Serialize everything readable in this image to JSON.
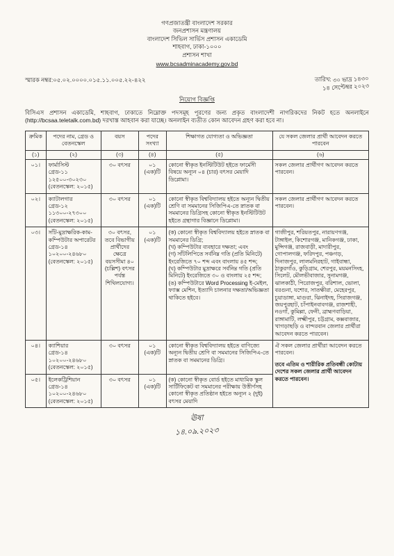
{
  "header": {
    "line1": "গণপ্রজাতন্ত্রী বাংলাদেশ সরকার",
    "line2": "জনপ্রশাসন মন্ত্রণালয়",
    "line3": "বাংলাদেশ সিভিল সার্ভিস প্রশাসন একাডেমি",
    "line4": "শাহবাগ, ঢাকা-১০০০",
    "line5": "প্রশাসন শাখা",
    "url": "www.bcsadminacademy.gov.bd"
  },
  "memo_label": "স্মারক নম্বর:০৫.০২.০০০০.০১৫.১১.০০৫.২২-",
  "memo_hand": "৪২২",
  "date_label": "তারিখ:",
  "date_line1": "৩০ ভাদ্র ১৪৩০",
  "date_line2": "১৪ সেপ্টেম্বর ২০২৩",
  "title": "নিয়োগ বিজ্ঞপ্তি",
  "intro": "বিসিএস প্রশাসন একাডেমি, শাহবাগ, ঢাকাতে নিম্নোক্ত পদসমূহ পূরণের জন্য প্রকৃত বাংলাদেশী নাগরিকদের নিকট হতে অনলাইনে (http://bcsaa.teletalk.com.bd) দরখাস্ত আহবান করা যাচ্ছে। অনলাইন ব্যতীত কোন আবেদন গ্রহণ করা হবে না।",
  "columns": {
    "h1": "ক্রমিক",
    "h2": "পদের নাম, গ্রেড ও বেতনস্কেল",
    "h3": "বয়স",
    "h4": "পদের সংখ্যা",
    "h5": "শিক্ষাগত যোগ্যতা ও অভিজ্ঞতা",
    "h6": "যে সকল জেলার প্রার্থী আবেদন করতে পারবেন",
    "s1": "(১)",
    "s2": "(২)",
    "s3": "(৩)",
    "s4": "(৪)",
    "s5": "(৫)",
    "s6": "(৬)"
  },
  "rows": [
    {
      "no": "০১।",
      "post": "ফার্মাসিস্ট\nগ্রেড-১১\n১২৫০০-৩০২৩০\n(বেতনস্কেল: ২০১৫)",
      "age": "৩০ বৎসর",
      "qty": "০১\n(এক)টি",
      "qual": "কোনো স্বীকৃত ইনস্টিটিউট হইতে ফার্মেসী বিষয়ে অন্যূন ০৪ (চার) বৎসর মেয়াদি ডিপ্লোমা।",
      "dist": "সকল জেলার প্রার্থীগণ আবেদন করতে পারবেন।"
    },
    {
      "no": "০২।",
      "post": "ক্যাটালগার\nগ্রেড-১২\n১১৩০০-২৭৩০০\n(বেতনস্কেল: ২০১৫)",
      "age": "৩০ বৎসর",
      "qty": "০১\n(এক)টি",
      "qual": "কোনো স্বীকৃত বিশ্ববিদ্যালয় হইতে অন্যূন দ্বিতীয় শ্রেণি বা সমমানের সিজিপিএ-তে স্নাতক বা সমমানের ডিগ্রিসহ কোনো স্বীকৃত ইনস্টিটিউট হইতে গ্রন্থাগার বিজ্ঞানে ডিপ্লোমা।",
      "dist": "সকল জেলার প্রার্থীগণ আবেদন করতে পারবেন।"
    },
    {
      "no": "০৩।",
      "post": "সাঁট-মুদ্রাক্ষরিক-কাম-কম্পিউটার অপারেটর\nগ্রেড-১৪\n১০২০০-২৪৬৮০\n(বেতনস্কেল: ২০১৫)",
      "age": "৩০ বৎসর, তবে বিভাগীয় প্রার্থীদের ক্ষেত্রে বয়সসীমা ৪০ (চল্লিশ) বৎসর পর্যন্ত শিথিলযোগ্য।",
      "qty": "০১\n(এক)টি",
      "qual": "(ক) কোনো স্বীকৃত বিশ্ববিদ্যালয় হইতে স্নাতক বা সমমানের ডিগ্রি;\n(খ) কম্পিউটার ব্যবহারে দক্ষতা; এবং\n(গ) সাঁটলিপিতে সর্বনিম্ন গতি (প্রতি মিনিটে) ইংরেজিতে ৭০ শব্দ এবং বাংলায় ৪৫ শব্দ;\n(ঘ) কম্পিউটার মুদ্রাক্ষরে সর্বনিম্ন গতি (প্রতি মিনিটে) ইংরেজিতে ৩০ ও বাংলায় ২৫ শব্দ;\n(ঙ) কম্পিউটারে Word Processing ই-মেইল, ফ্যাক্স মেশিন, ইত্যাদি চালনার দক্ষতা/অভিজ্ঞতা থাকিতে হইবে।",
      "dist": "গাজীপুর, শরিয়তপুর, নারায়ণগঞ্জ, টাঙ্গাইল, কিশোরগঞ্জ, মানিকগঞ্জ, ঢাকা, মুন্সিগঞ্জ, রাজবাড়ী, মাদারীপুর, গোপালগঞ্জ, ফরিদপুর, পঞ্চগড়, দিনাজপুর, লালমনিরহাট, গাইবান্ধা, ঠাকুরগাঁও, কুড়িগ্রাম, শেরপুর, ময়মনসিংহ, সিলেট, মৌলভীবাজার, সুনামগঞ্জ, ঝালকাঠী, পিরোজপুর, বরিশাল, ভোলা, বরগুনা, যশোর, সাতক্ষীরা, মেহেরপুর, চুয়াডাঙ্গা, মাগুরা, ঝিনাইদহ, সিরাজগঞ্জ, জয়পুরহাট, চাঁপাইনবাবগঞ্জ, রাজশাহী, নওগাঁ, কুমিল্লা, ফেনী, ব্রাহ্মণবাড়িয়া, রাঙ্গামাটি, লক্ষ্মীপুর, চট্টগ্রাম, কক্সবাজার, খাগড়াছড়ি ও বান্দরবান জেলার প্রার্থীরা আবেদন করতে পারবেন।"
    },
    {
      "no": "০৪।",
      "post": "ক্যাশিয়ার\nগ্রেড-১৪\n১০২০০-২৪৬৮০\n(বেতনস্কেল: ২০১৫)",
      "age": "৩০ বৎসর",
      "qty": "০১\n(এক)টি",
      "qual": "কোনো স্বীকৃত বিশ্ববিদ্যালয় হইতে বাণিজ্যে অন্যূন দ্বিতীয় শ্রেণি বা সমমানের সিজিপিএ-তে স্নাতক বা সমমানের ডিগ্রি।",
      "dist": "ঐ সকল জেলার প্রার্থীরা আবেদন করতে পারবেন।\n\nতবে এতিম ও শারীরিক প্রতিবন্ধী কোটায় দেশের সকল জেলার প্রার্থী আবেদন করতে পারবেন।"
    },
    {
      "no": "০৫।",
      "post": "ইলেকট্রিশিয়ান\nগ্রেড-১৪\n১০২০০-২৪৬৮০\n(বেতনস্কেল: ২০১৫)",
      "age": "৩০ বৎসর",
      "qty": "০১\n(এক)টি",
      "qual": "(ক) কোনো স্বীকৃত বোর্ড হইতে মাধ্যমিক স্কুল সার্টিফিকেট বা সমমানের পরীক্ষায় উত্তীর্ণসহ কোনো স্বীকৃত প্রতিষ্ঠান হইতে অন্যূন ২ (দুই) বৎসর মেয়াদি",
      "dist": ""
    }
  ],
  "sign": "১৪.০৯.২০২৩"
}
